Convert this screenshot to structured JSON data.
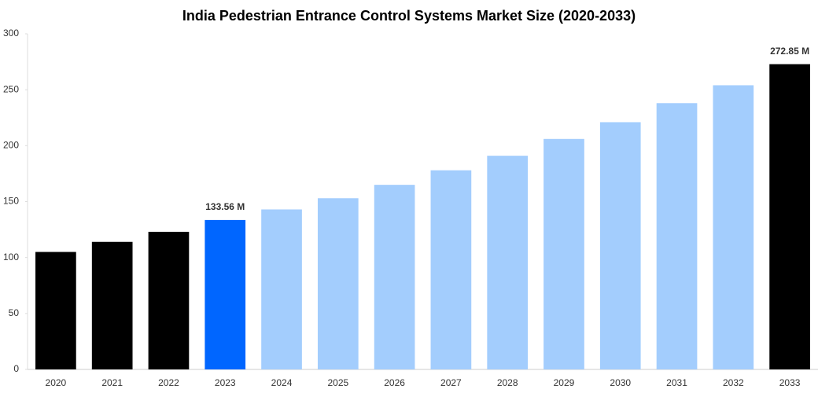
{
  "chart_data": {
    "type": "bar",
    "title": "India Pedestrian Entrance Control Systems Market Size (2020-2033)",
    "categories": [
      "2020",
      "2021",
      "2022",
      "2023",
      "2024",
      "2025",
      "2026",
      "2027",
      "2028",
      "2029",
      "2030",
      "2031",
      "2032",
      "2033"
    ],
    "values": [
      105,
      114,
      123,
      133.56,
      143,
      153,
      165,
      178,
      191,
      206,
      221,
      238,
      254,
      272.85
    ],
    "value_labels": [
      null,
      null,
      null,
      "133.56 M",
      null,
      null,
      null,
      null,
      null,
      null,
      null,
      null,
      null,
      "272.85 M"
    ],
    "colors": [
      "#000000",
      "#000000",
      "#000000",
      "#0066ff",
      "#a3cdfd",
      "#a3cdfd",
      "#a3cdfd",
      "#a3cdfd",
      "#a3cdfd",
      "#a3cdfd",
      "#a3cdfd",
      "#a3cdfd",
      "#a3cdfd",
      "#000000"
    ],
    "ylim": [
      0,
      300
    ],
    "yticks": [
      0,
      50,
      100,
      150,
      200,
      250,
      300
    ],
    "grid": false
  }
}
